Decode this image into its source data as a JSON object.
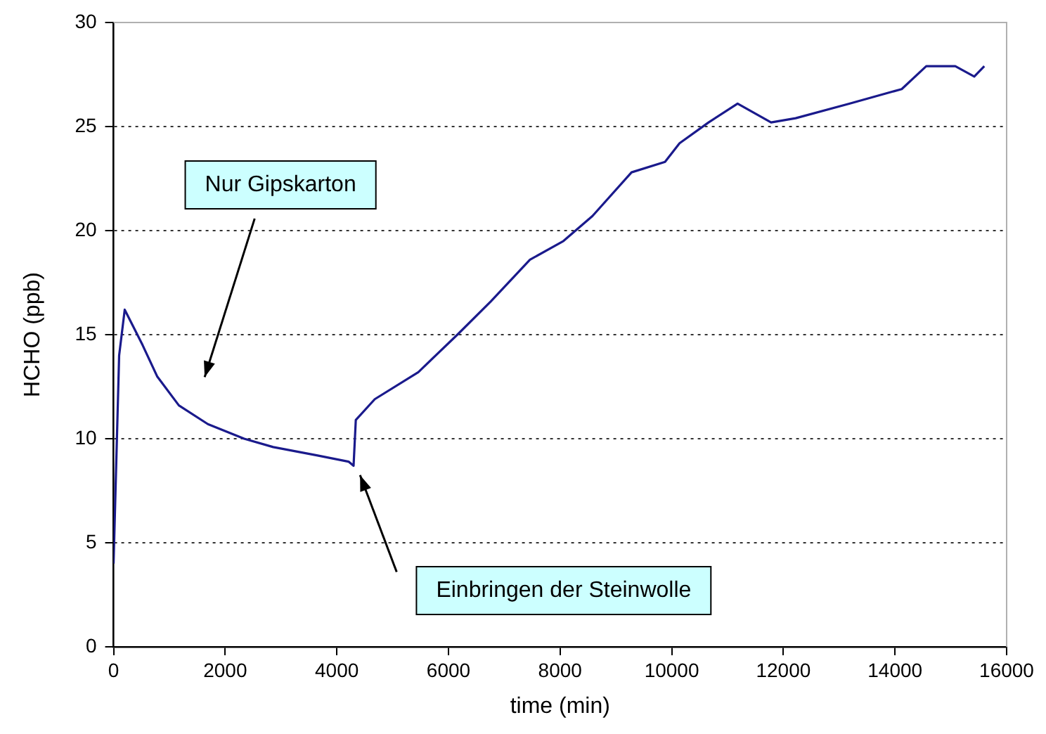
{
  "chart_data": {
    "type": "line",
    "xlabel": "time (min)",
    "ylabel": "HCHO (ppb)",
    "x": [
      0,
      50,
      100,
      200,
      520,
      780,
      1170,
      1690,
      2340,
      2860,
      3640,
      4210,
      4300,
      4340,
      4680,
      5460,
      6160,
      6760,
      7460,
      8060,
      8580,
      9280,
      9880,
      10140,
      10660,
      11180,
      11780,
      12220,
      13180,
      14120,
      14560,
      15080,
      15420,
      15600
    ],
    "series": [
      {
        "color": "#1a1a8c",
        "values": [
          4,
          9,
          14,
          16.2,
          14.5,
          13,
          11.6,
          10.7,
          10,
          9.6,
          9.2,
          8.9,
          8.7,
          10.9,
          11.9,
          13.2,
          15,
          16.6,
          18.6,
          19.5,
          20.7,
          22.8,
          23.3,
          24.2,
          25.2,
          26.1,
          25.2,
          25.4,
          26.1,
          26.8,
          27.9,
          27.9,
          27.4,
          27.9
        ]
      }
    ],
    "xlim": [
      0,
      16000
    ],
    "xticks": [
      0,
      2000,
      4000,
      6000,
      8000,
      10000,
      12000,
      14000,
      16000
    ],
    "ylim": [
      0,
      30
    ],
    "yticks": [
      0,
      5,
      10,
      15,
      20,
      25,
      30
    ],
    "grid": "y",
    "legend": false,
    "marker": "none",
    "line_style": "solid",
    "annotations": [
      "Nur Gipskarton",
      "Einbringen der Steinwolle"
    ]
  }
}
